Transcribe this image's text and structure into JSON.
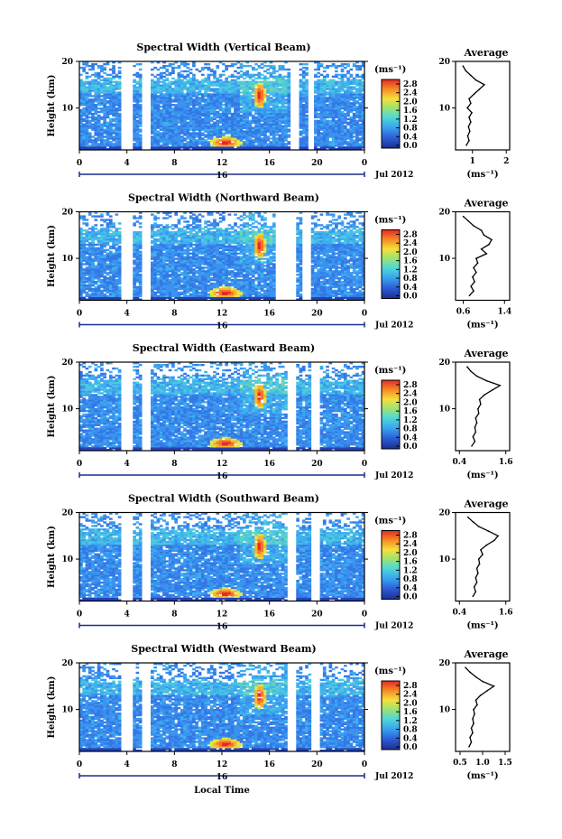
{
  "chart_data": [
    {
      "type": "heatmap",
      "title": "Spectral Width (Vertical Beam)",
      "ylabel": "Height (km)",
      "yticks": [
        "20",
        "10"
      ],
      "xticks": [
        "0",
        "4",
        "8",
        "12",
        "16",
        "20",
        "0"
      ],
      "date_mark": "16",
      "date_label": "Jul 2012",
      "xlabel": "",
      "colorbar": {
        "unit": "(ms⁻¹)",
        "ticks": [
          "2.8",
          "2.4",
          "2.0",
          "1.6",
          "1.2",
          "0.8",
          "0.4",
          "0.0"
        ]
      },
      "profile": {
        "title": "Average",
        "yticks": [
          "20",
          "10"
        ],
        "xticks": [
          "1",
          "2"
        ],
        "xlim": [
          0.5,
          2.1
        ],
        "xlabel": "(ms⁻¹)",
        "heights": [
          2,
          3,
          4,
          5,
          6,
          7,
          8,
          9,
          10,
          11,
          12,
          13,
          14,
          15,
          16,
          17,
          18,
          19
        ],
        "values": [
          0.82,
          0.9,
          0.86,
          0.92,
          0.88,
          0.95,
          0.9,
          0.98,
          0.85,
          0.95,
          0.9,
          1.05,
          1.2,
          1.35,
          1.1,
          0.95,
          0.8,
          0.72
        ]
      }
    },
    {
      "type": "heatmap",
      "title": "Spectral Width (Northward Beam)",
      "ylabel": "Height (km)",
      "yticks": [
        "20",
        "10"
      ],
      "xticks": [
        "0",
        "4",
        "8",
        "12",
        "16",
        "20",
        "0"
      ],
      "date_mark": "16",
      "date_label": "Jul 2012",
      "xlabel": "",
      "colorbar": {
        "unit": "(ms⁻¹)",
        "ticks": [
          "2.8",
          "2.4",
          "2.0",
          "1.6",
          "1.2",
          "0.8",
          "0.4",
          "0.0"
        ]
      },
      "profile": {
        "title": "Average",
        "yticks": [
          "20",
          "10"
        ],
        "xticks": [
          "0.6",
          "1.4"
        ],
        "xlim": [
          0.45,
          1.5
        ],
        "xlabel": "(ms⁻¹)",
        "heights": [
          2,
          3,
          4,
          5,
          6,
          7,
          8,
          9,
          10,
          11,
          12,
          13,
          14,
          15,
          16,
          17,
          18,
          19
        ],
        "values": [
          0.72,
          0.8,
          0.75,
          0.82,
          0.78,
          0.85,
          0.8,
          0.88,
          0.85,
          1.05,
          0.95,
          1.1,
          1.15,
          1.0,
          0.95,
          0.8,
          0.7,
          0.6
        ]
      }
    },
    {
      "type": "heatmap",
      "title": "Spectral Width (Eastward Beam)",
      "ylabel": "Height (km)",
      "yticks": [
        "20",
        "10"
      ],
      "xticks": [
        "0",
        "4",
        "8",
        "12",
        "16",
        "20",
        "0"
      ],
      "date_mark": "16",
      "date_label": "Jul 2012",
      "xlabel": "",
      "colorbar": {
        "unit": "(ms⁻¹)",
        "ticks": [
          "2.8",
          "2.4",
          "2.0",
          "1.6",
          "1.2",
          "0.8",
          "0.4",
          "0.0"
        ]
      },
      "profile": {
        "title": "Average",
        "yticks": [
          "20",
          "10"
        ],
        "xticks": [
          "0.4",
          "1.6"
        ],
        "xlim": [
          0.3,
          1.7
        ],
        "xlabel": "(ms⁻¹)",
        "heights": [
          2,
          3,
          4,
          5,
          6,
          7,
          8,
          9,
          10,
          11,
          12,
          13,
          14,
          15,
          16,
          17,
          18,
          19
        ],
        "values": [
          0.72,
          0.8,
          0.75,
          0.82,
          0.8,
          0.85,
          0.82,
          0.9,
          0.88,
          0.95,
          0.92,
          1.05,
          1.25,
          1.45,
          1.1,
          0.85,
          0.7,
          0.6
        ]
      }
    },
    {
      "type": "heatmap",
      "title": "Spectral Width (Southward Beam)",
      "ylabel": "Height (km)",
      "yticks": [
        "20",
        "10"
      ],
      "xticks": [
        "0",
        "4",
        "8",
        "12",
        "16",
        "20",
        "0"
      ],
      "date_mark": "16",
      "date_label": "Jul 2012",
      "xlabel": "",
      "colorbar": {
        "unit": "(ms⁻¹)",
        "ticks": [
          "2.8",
          "2.4",
          "2.0",
          "1.6",
          "1.2",
          "0.8",
          "0.4",
          "0.0"
        ]
      },
      "profile": {
        "title": "Average",
        "yticks": [
          "20",
          "10"
        ],
        "xticks": [
          "0.4",
          "1.6"
        ],
        "xlim": [
          0.3,
          1.7
        ],
        "xlabel": "(ms⁻¹)",
        "heights": [
          2,
          3,
          4,
          5,
          6,
          7,
          8,
          9,
          10,
          11,
          12,
          13,
          14,
          15,
          16,
          17,
          18,
          19
        ],
        "values": [
          0.75,
          0.82,
          0.78,
          0.85,
          0.82,
          0.88,
          0.85,
          0.92,
          0.9,
          1.0,
          0.95,
          1.1,
          1.3,
          1.4,
          1.15,
          0.9,
          0.75,
          0.62
        ]
      }
    },
    {
      "type": "heatmap",
      "title": "Spectral Width (Westward Beam)",
      "ylabel": "Height (km)",
      "yticks": [
        "20",
        "10"
      ],
      "xticks": [
        "0",
        "4",
        "8",
        "12",
        "16",
        "20",
        "0"
      ],
      "date_mark": "16",
      "date_label": "Jul 2012",
      "xlabel": "Local Time",
      "colorbar": {
        "unit": "(ms⁻¹)",
        "ticks": [
          "2.8",
          "2.4",
          "2.0",
          "1.6",
          "1.2",
          "0.8",
          "0.4",
          "0.0"
        ]
      },
      "profile": {
        "title": "Average",
        "yticks": [
          "20",
          "10"
        ],
        "xticks": [
          "0.5",
          "1.0",
          "1.5"
        ],
        "xlim": [
          0.4,
          1.6
        ],
        "xlabel": "(ms⁻¹)",
        "heights": [
          2,
          3,
          4,
          5,
          6,
          7,
          8,
          9,
          10,
          11,
          12,
          13,
          14,
          15,
          16,
          17,
          18,
          19
        ],
        "values": [
          0.7,
          0.75,
          0.72,
          0.78,
          0.75,
          0.8,
          0.78,
          0.82,
          0.8,
          0.88,
          0.85,
          0.95,
          1.1,
          1.25,
          1.0,
          0.85,
          0.72,
          0.62
        ]
      }
    }
  ]
}
